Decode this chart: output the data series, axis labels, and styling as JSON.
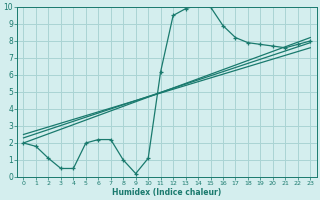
{
  "xlabel": "Humidex (Indice chaleur)",
  "bg_color": "#d4eeee",
  "grid_color": "#aad4d4",
  "line_color": "#1a7a6e",
  "xlim": [
    -0.5,
    23.5
  ],
  "ylim": [
    0,
    10
  ],
  "xticks": [
    0,
    1,
    2,
    3,
    4,
    5,
    6,
    7,
    8,
    9,
    10,
    11,
    12,
    13,
    14,
    15,
    16,
    17,
    18,
    19,
    20,
    21,
    22,
    23
  ],
  "yticks": [
    0,
    1,
    2,
    3,
    4,
    5,
    6,
    7,
    8,
    9,
    10
  ],
  "curve1_x": [
    0,
    1,
    2,
    3,
    4,
    5,
    6,
    7,
    8,
    9,
    10,
    11,
    12,
    13,
    14,
    15,
    16,
    17,
    18,
    19,
    20,
    21,
    22,
    23
  ],
  "curve1_y": [
    2.0,
    1.8,
    1.1,
    0.5,
    0.5,
    2.0,
    2.2,
    2.2,
    1.0,
    0.2,
    1.1,
    6.2,
    9.5,
    9.9,
    10.1,
    10.0,
    8.9,
    8.2,
    7.9,
    7.8,
    7.7,
    7.6,
    7.8,
    8.0
  ],
  "line2_x": [
    0,
    23
  ],
  "line2_y": [
    2.0,
    8.2
  ],
  "line3_x": [
    0,
    23
  ],
  "line3_y": [
    2.3,
    7.9
  ],
  "line4_x": [
    0,
    23
  ],
  "line4_y": [
    2.5,
    7.6
  ]
}
